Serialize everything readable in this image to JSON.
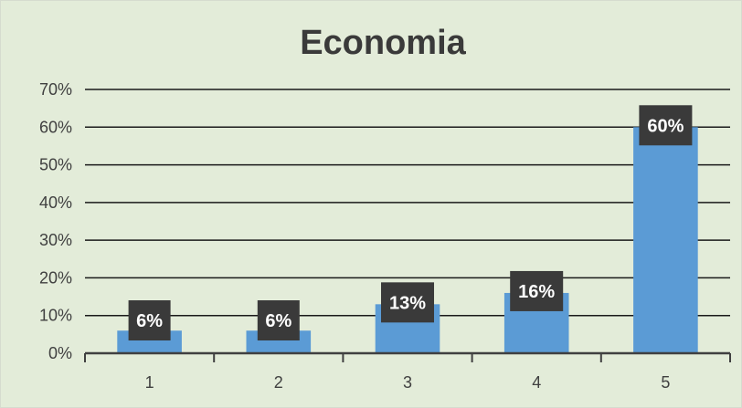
{
  "chart_data": {
    "type": "bar",
    "title": "Economia",
    "xlabel": "",
    "ylabel": "",
    "categories": [
      "1",
      "2",
      "3",
      "4",
      "5"
    ],
    "values": [
      0.06,
      0.06,
      0.13,
      0.16,
      0.6
    ],
    "data_labels": [
      "6%",
      "6%",
      "13%",
      "16%",
      "60%"
    ],
    "ylim": [
      0,
      0.7
    ],
    "yticks": [
      {
        "value": 0.0,
        "label": "0%"
      },
      {
        "value": 0.1,
        "label": "10%"
      },
      {
        "value": 0.2,
        "label": "20%"
      },
      {
        "value": 0.3,
        "label": "30%"
      },
      {
        "value": 0.4,
        "label": "40%"
      },
      {
        "value": 0.5,
        "label": "50%"
      },
      {
        "value": 0.6,
        "label": "60%"
      },
      {
        "value": 0.7,
        "label": "70%"
      }
    ],
    "grid": true,
    "legend": "none",
    "colors": {
      "bar": "#5b9bd5",
      "label_bg": "#3a3a3a",
      "label_text": "#ffffff",
      "gridline": "#1a1a1a",
      "background": "#e3ecd9"
    }
  }
}
